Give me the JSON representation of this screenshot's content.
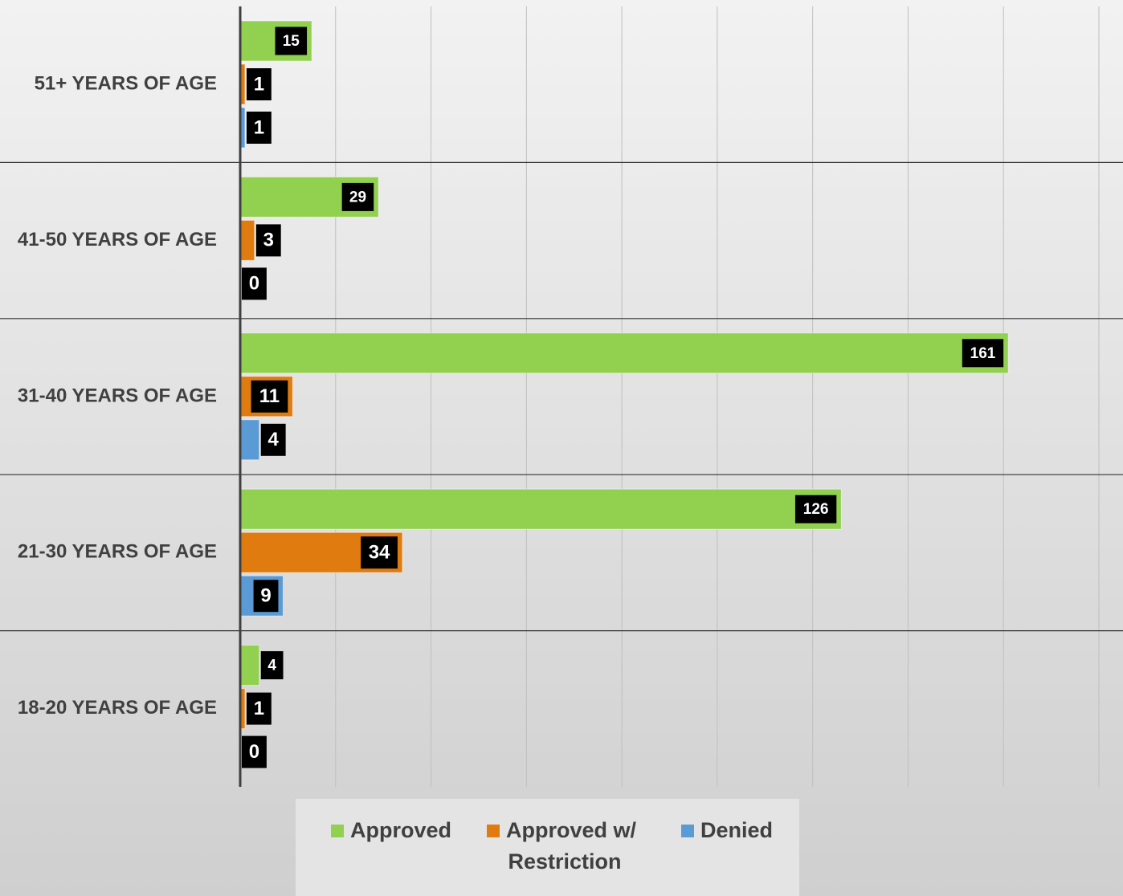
{
  "chart_data": {
    "type": "hbar",
    "categories": [
      "51+ YEARS OF AGE",
      "41-50 YEARS OF AGE",
      "31-40 YEARS OF AGE",
      "21-30 YEARS OF AGE",
      "18-20 YEARS OF AGE"
    ],
    "series": [
      {
        "name": "Approved",
        "color": "#92d050",
        "values": [
          15,
          29,
          161,
          126,
          4
        ]
      },
      {
        "name": "Approved w/ Restriction",
        "color": "#e07b10",
        "values": [
          1,
          3,
          11,
          34,
          1
        ]
      },
      {
        "name": "Denied",
        "color": "#5b9bd5",
        "values": [
          1,
          0,
          4,
          9,
          0
        ]
      }
    ],
    "xlim": [
      0,
      180
    ],
    "xticks": [
      0,
      20,
      40,
      60,
      80,
      100,
      120,
      140,
      160,
      180
    ],
    "grid": true,
    "legend": "bottom"
  }
}
